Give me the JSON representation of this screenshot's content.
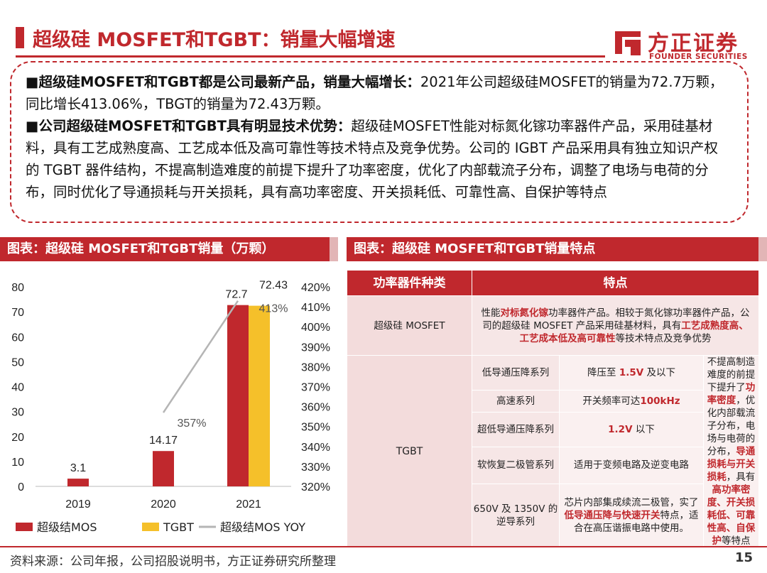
{
  "header": {
    "title": "超级硅 MOSFET和TGBT：销量大幅增速",
    "logo_cn": "方正证券",
    "logo_en": "FOUNDER SECURITIES"
  },
  "summary": {
    "p1_bold": "超级硅MOSFET和TGBT都是公司最新产品，销量大幅增长：",
    "p1_text": "2021年公司超级硅MOSFET的销量为72.7万颗，同比增长413.06%，TBGT的销量为72.43万颗。",
    "p2_bold": "公司超级硅MOSFET和TGBT具有明显技术优势：",
    "p2_text": "超级硅MOSFET性能对标氮化镓功率器件产品，采用硅基材料，具有工艺成熟度高、工艺成本低及高可靠性等技术特点及竞争优势。公司的 IGBT 产品采用具有独立知识产权的 TGBT 器件结构，不提高制造难度的前提下提升了功率密度，优化了内部载流子分布，调整了电场与电荷的分布，同时优化了导通损耗与开关损耗，具有高功率密度、开关损耗低、可靠性高、自保护等特点"
  },
  "left_panel": {
    "title": "图表：超级硅 MOSFET和TGBT销量（万颗）"
  },
  "right_panel": {
    "title": "图表：超级硅 MOSFET和TGBT销量特点"
  },
  "chart_data": {
    "type": "bar",
    "title": "超级硅 MOSFET和TGBT销量（万颗）",
    "categories": [
      "2019",
      "2020",
      "2021"
    ],
    "series": [
      {
        "name": "超级结MOS",
        "type": "bar",
        "axis": "left",
        "values": [
          3.1,
          14.17,
          72.7
        ],
        "labels": [
          "3.1",
          "14.17",
          "72.7"
        ],
        "color": "#c0282d"
      },
      {
        "name": "TGBT",
        "type": "bar",
        "axis": "left",
        "values": [
          null,
          null,
          72.43
        ],
        "labels": [
          "",
          "",
          "72.43"
        ],
        "color": "#f5c02a"
      },
      {
        "name": "超级结MOS YOY",
        "type": "line",
        "axis": "right",
        "values": [
          null,
          357,
          413
        ],
        "labels": [
          "",
          "357%",
          "413%"
        ],
        "color": "#b5b5b5"
      }
    ],
    "ylim": [
      0,
      80
    ],
    "yticks": [
      "0",
      "10",
      "20",
      "30",
      "40",
      "50",
      "60",
      "70",
      "80"
    ],
    "y2lim": [
      320,
      420
    ],
    "y2ticks": [
      "320%",
      "330%",
      "340%",
      "350%",
      "360%",
      "370%",
      "380%",
      "390%",
      "400%",
      "410%",
      "420%"
    ],
    "legend": "bottom"
  },
  "table": {
    "headers": [
      "功率器件种类",
      "特点"
    ],
    "mosfet": {
      "category": "超级硅 MOSFET",
      "desc": [
        {
          "t": "性能"
        },
        {
          "t": "对标氮化镓",
          "hl": true
        },
        {
          "t": "功率器件产品。相较于氮化镓功率器件产品，公司的超级硅 MOSFET 产品采用硅基材料，具有"
        },
        {
          "t": "工艺成熟度高、工艺成本低及高可靠性",
          "hl": true
        },
        {
          "t": "等技术特点及竞争优势"
        }
      ]
    },
    "tgbt": {
      "category": "TGBT",
      "rows": [
        {
          "series": "低导通压降系列",
          "feature": [
            {
              "t": "降压至 "
            },
            {
              "t": "1.5V",
              "hl": true
            },
            {
              "t": " 及以下"
            }
          ]
        },
        {
          "series": "高速系列",
          "feature": [
            {
              "t": "开关频率可达"
            },
            {
              "t": "100kHz",
              "hl": true
            }
          ]
        },
        {
          "series": "超低导通压降系列",
          "feature": [
            {
              "t": "1.2V",
              "hl": true
            },
            {
              "t": " 以下"
            }
          ]
        },
        {
          "series": "软恢复二极管系列",
          "feature": [
            {
              "t": "适用于变频电路及逆变电路"
            }
          ]
        },
        {
          "series": "650V 及 1350V 的逆导系列",
          "feature": [
            {
              "t": "芯片内部集成续流二极管，实了"
            },
            {
              "t": "低导通压降与快速开关",
              "hl": true
            },
            {
              "t": "特点，适合在高压谐振电路中使用。"
            }
          ]
        }
      ],
      "summary": [
        {
          "t": "不提高制造难度的前提下提升了"
        },
        {
          "t": "功率密度",
          "hl": true
        },
        {
          "t": "，优化内部载流子分布，电场与电荷的分布，"
        },
        {
          "t": "导通损耗与开关损耗",
          "hl": true
        },
        {
          "t": "，具有"
        },
        {
          "t": "高功率密度、开关损耗低、可靠性高、自保护",
          "hl": true
        },
        {
          "t": "等特点"
        }
      ]
    }
  },
  "footer": {
    "source": "资料来源：公司年报，公司招股说明书，方正证券研究所整理",
    "page": "15"
  }
}
